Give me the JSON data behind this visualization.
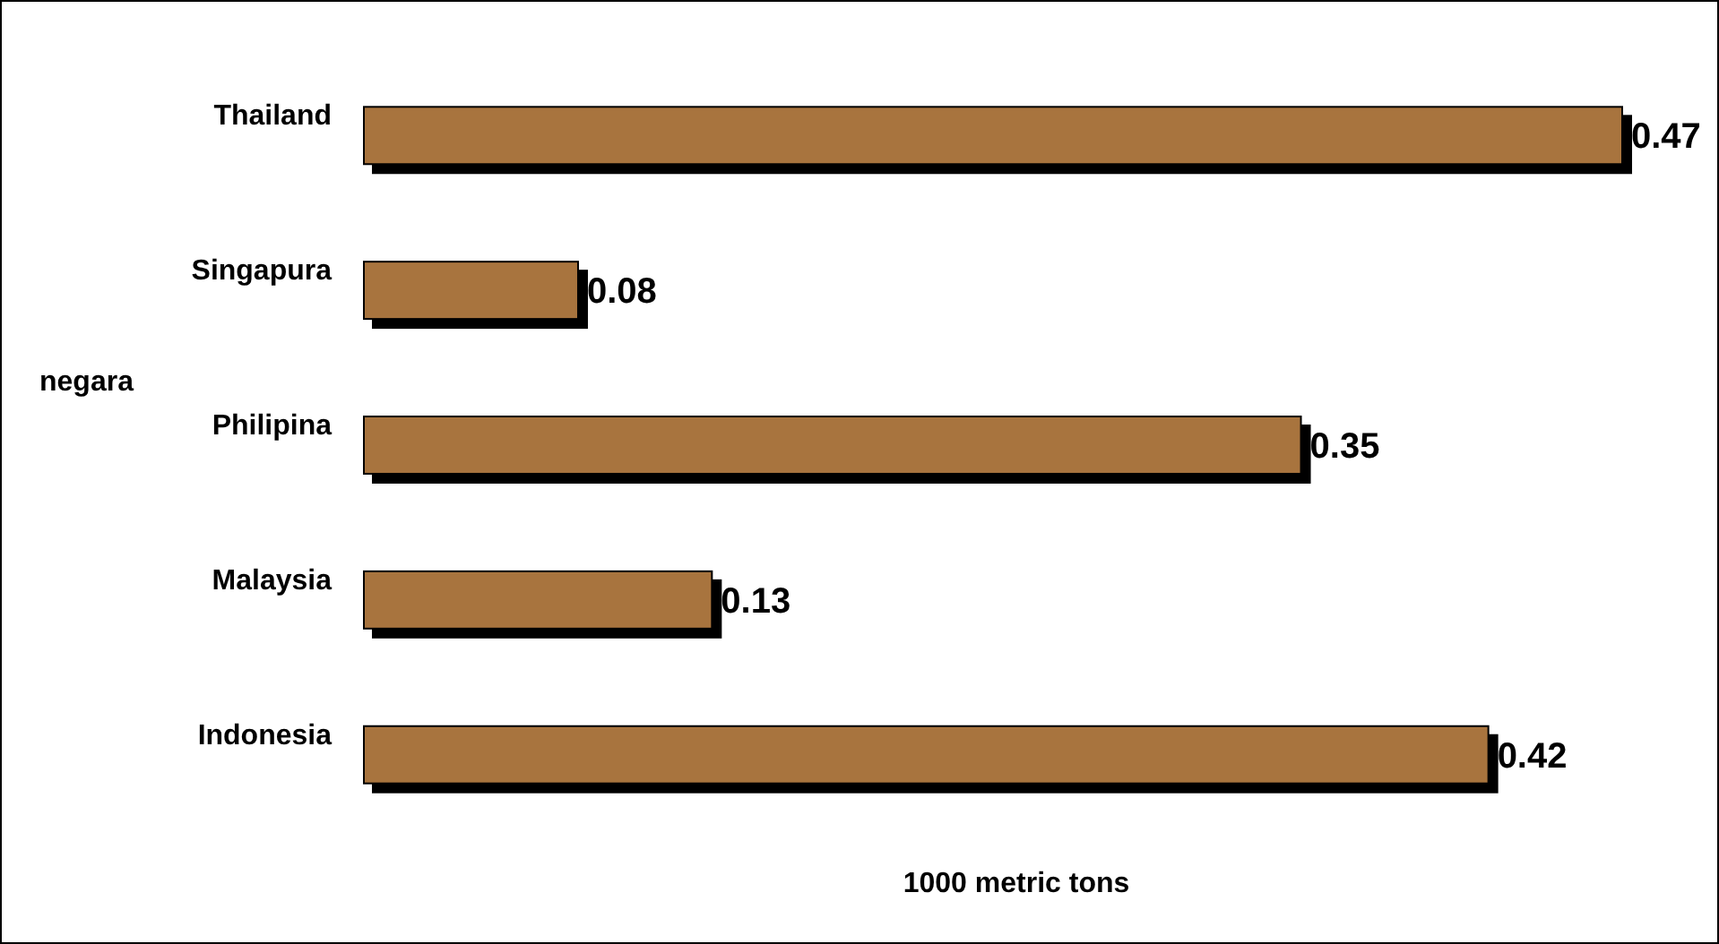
{
  "chart_data": {
    "type": "bar",
    "orientation": "horizontal",
    "categories": [
      "Thailand",
      "Singapura",
      "Philipina",
      "Malaysia",
      "Indonesia"
    ],
    "values": [
      0.47,
      0.08,
      0.35,
      0.13,
      0.42
    ],
    "color": "#a8743e",
    "data_labels": true,
    "ylabel": "negara",
    "xlabel": "1000 metric tons"
  }
}
